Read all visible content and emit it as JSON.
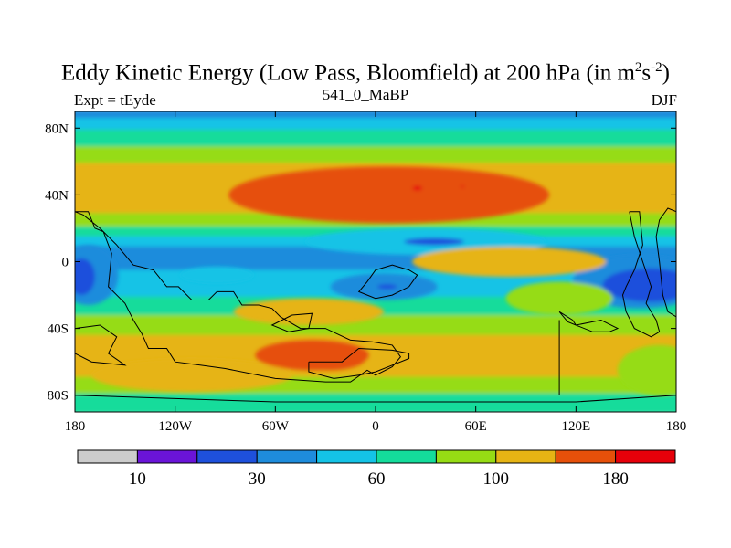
{
  "chart_data": {
    "type": "heatmap",
    "title_main": "Eddy Kinetic Energy (Low Pass, Bloomfield) at 200 hPa (in m",
    "title_unit_exp1": "2",
    "title_unit_s": "s",
    "title_unit_exp2": "-2",
    "title_close": ")",
    "left_string": "Expt = tEyde",
    "center_string": "541_0_MaBP",
    "right_string": "DJF",
    "x_range": [
      -180,
      180
    ],
    "y_range": [
      -90,
      90
    ],
    "x_ticks": [
      {
        "value": -180,
        "label": "180"
      },
      {
        "value": -120,
        "label": "120W"
      },
      {
        "value": -60,
        "label": "60W"
      },
      {
        "value": 0,
        "label": "0"
      },
      {
        "value": 60,
        "label": "60E"
      },
      {
        "value": 120,
        "label": "120E"
      },
      {
        "value": 180,
        "label": "180"
      }
    ],
    "y_ticks": [
      {
        "value": 80,
        "label": "80N"
      },
      {
        "value": 40,
        "label": "40N"
      },
      {
        "value": 0,
        "label": "0"
      },
      {
        "value": -40,
        "label": "40S"
      },
      {
        "value": -80,
        "label": "80S"
      }
    ],
    "colorbar": {
      "colors": [
        "#cccccc",
        "#6a14d8",
        "#1e50dc",
        "#1e8cdc",
        "#14c3e6",
        "#14dc9b",
        "#96dc14",
        "#e6b414",
        "#e6500a",
        "#e6000a"
      ],
      "levels": [
        {
          "index": 1,
          "label": "10"
        },
        {
          "index": 3,
          "label": "30"
        },
        {
          "index": 5,
          "label": "60"
        },
        {
          "index": 7,
          "label": "100"
        },
        {
          "index": 9,
          "label": "180"
        }
      ]
    },
    "bands": [
      {
        "lat": 90,
        "level": 3
      },
      {
        "lat": 85,
        "level": 4
      },
      {
        "lat": 78,
        "level": 5
      },
      {
        "lat": 68,
        "level": 6
      },
      {
        "lat": 58,
        "level": 7
      },
      {
        "lat": 28,
        "level": 6
      },
      {
        "lat": 20,
        "level": 5
      },
      {
        "lat": 14,
        "level": 4
      },
      {
        "lat": 8,
        "level": 3
      },
      {
        "lat": -6,
        "level": 4
      },
      {
        "lat": -22,
        "level": 5
      },
      {
        "lat": -33,
        "level": 6
      },
      {
        "lat": -45,
        "level": 7
      },
      {
        "lat": -70,
        "level": 6
      },
      {
        "lat": -80,
        "level": 5
      },
      {
        "lat": -90,
        "level": 5
      }
    ],
    "blobs": [
      {
        "lon": 8,
        "lat": 40,
        "rlon": 96,
        "rlat": 17,
        "level": 8
      },
      {
        "lon": 6,
        "lat": 41,
        "rlon": 82,
        "rlat": 11,
        "level": 8
      },
      {
        "lon": 25,
        "lat": 44,
        "rlon": 3,
        "rlat": 1.4,
        "level": 9
      },
      {
        "lon": 52,
        "lat": 45,
        "rlon": 1.2,
        "rlat": 0.6,
        "level": 9
      },
      {
        "lon": 30,
        "lat": 12,
        "rlon": 72,
        "rlat": 8,
        "level": 4
      },
      {
        "lon": 35,
        "lat": 12,
        "rlon": 18,
        "rlat": 2.2,
        "level": 2
      },
      {
        "lon": -172,
        "lat": -8,
        "rlon": 18,
        "rlat": 18,
        "level": 3
      },
      {
        "lon": -176,
        "lat": -9,
        "rlon": 8,
        "rlat": 11,
        "level": 2
      },
      {
        "lon": -95,
        "lat": -8,
        "rlon": 22,
        "rlat": 5,
        "level": 4
      },
      {
        "lon": 5,
        "lat": -15,
        "rlon": 32,
        "rlat": 8,
        "level": 3
      },
      {
        "lon": 7,
        "lat": -15,
        "rlon": 6,
        "rlat": 1.5,
        "level": 2
      },
      {
        "lon": 158,
        "lat": -12,
        "rlon": 40,
        "rlat": 16,
        "level": 3
      },
      {
        "lon": 164,
        "lat": -14,
        "rlon": 28,
        "rlat": 10,
        "level": 2
      },
      {
        "lon": 80,
        "lat": 0,
        "rlon": 58,
        "rlat": 9,
        "level": 7
      },
      {
        "lon": 110,
        "lat": -22,
        "rlon": 32,
        "rlat": 10,
        "level": 6
      },
      {
        "lon": -40,
        "lat": -30,
        "rlon": 45,
        "rlat": 8,
        "level": 7
      },
      {
        "lon": -110,
        "lat": -68,
        "rlon": 60,
        "rlat": 10,
        "level": 7
      },
      {
        "lon": -38,
        "lat": -56,
        "rlon": 34,
        "rlat": 9,
        "level": 8
      },
      {
        "lon": -28,
        "lat": -58,
        "rlon": 22,
        "rlat": 7,
        "level": 8
      },
      {
        "lon": 170,
        "lat": -65,
        "rlon": 25,
        "rlat": 15,
        "level": 6
      }
    ],
    "coastlines": [
      [
        [
          -180,
          30
        ],
        [
          -172,
          30
        ],
        [
          -168,
          20
        ],
        [
          -163,
          18
        ],
        [
          -158,
          5
        ],
        [
          -160,
          -15
        ],
        [
          -150,
          -25
        ],
        [
          -145,
          -35
        ],
        [
          -140,
          -43
        ],
        [
          -136,
          -52
        ],
        [
          -125,
          -52
        ],
        [
          -120,
          -60
        ],
        [
          -105,
          -62
        ],
        [
          -90,
          -64
        ],
        [
          -60,
          -70
        ],
        [
          -30,
          -72
        ],
        [
          -15,
          -72
        ],
        [
          -5,
          -65
        ],
        [
          0,
          -68
        ],
        [
          10,
          -63
        ],
        [
          15,
          -57
        ],
        [
          10,
          -50
        ],
        [
          -2,
          -48
        ],
        [
          -15,
          -47
        ],
        [
          -30,
          -40
        ],
        [
          -45,
          -40
        ],
        [
          -57,
          -33
        ],
        [
          -62,
          -28
        ],
        [
          -70,
          -26
        ],
        [
          -80,
          -26
        ],
        [
          -85,
          -18
        ],
        [
          -95,
          -18
        ],
        [
          -100,
          -23
        ],
        [
          -110,
          -23
        ],
        [
          -118,
          -15
        ],
        [
          -125,
          -15
        ],
        [
          -133,
          -5
        ],
        [
          -145,
          -2
        ],
        [
          -155,
          10
        ],
        [
          -165,
          20
        ],
        [
          -175,
          28
        ],
        [
          -180,
          30
        ]
      ],
      [
        [
          -50,
          -32
        ],
        [
          -38,
          -31
        ],
        [
          -40,
          -40
        ],
        [
          -52,
          -42
        ],
        [
          -62,
          -38
        ],
        [
          -50,
          -32
        ]
      ],
      [
        [
          -40,
          -60
        ],
        [
          -20,
          -60
        ],
        [
          -10,
          -52
        ],
        [
          10,
          -53
        ],
        [
          20,
          -55
        ],
        [
          20,
          -58
        ],
        [
          10,
          -62
        ],
        [
          0,
          -66
        ],
        [
          -10,
          -68
        ],
        [
          -25,
          -70
        ],
        [
          -40,
          -66
        ],
        [
          -40,
          -60
        ]
      ],
      [
        [
          -180,
          -80
        ],
        [
          -120,
          -82
        ],
        [
          -60,
          -84
        ],
        [
          0,
          -84
        ],
        [
          60,
          -84
        ],
        [
          120,
          -84
        ],
        [
          180,
          -80
        ]
      ],
      [
        [
          -180,
          -40
        ],
        [
          -165,
          -38
        ],
        [
          -155,
          -45
        ],
        [
          -160,
          -55
        ],
        [
          -150,
          -62
        ],
        [
          -170,
          -60
        ],
        [
          -180,
          -55
        ]
      ],
      [
        [
          -5,
          -12
        ],
        [
          0,
          -5
        ],
        [
          10,
          -2
        ],
        [
          20,
          -5
        ],
        [
          25,
          -8
        ],
        [
          20,
          -15
        ],
        [
          10,
          -20
        ],
        [
          0,
          -22
        ],
        [
          -10,
          -18
        ],
        [
          -5,
          -12
        ]
      ],
      [
        [
          110,
          -30
        ],
        [
          118,
          -35
        ],
        [
          120,
          -38
        ],
        [
          135,
          -35
        ],
        [
          145,
          -40
        ],
        [
          140,
          -42
        ],
        [
          130,
          -42
        ],
        [
          120,
          -38
        ],
        [
          115,
          -36
        ],
        [
          110,
          -30
        ]
      ],
      [
        [
          110,
          -35
        ],
        [
          110,
          -80
        ]
      ],
      [
        [
          152,
          30
        ],
        [
          158,
          30
        ],
        [
          160,
          10
        ],
        [
          155,
          -5
        ],
        [
          150,
          -15
        ],
        [
          148,
          -20
        ],
        [
          150,
          -30
        ],
        [
          155,
          -40
        ],
        [
          165,
          -45
        ],
        [
          170,
          -42
        ],
        [
          168,
          -35
        ],
        [
          162,
          -25
        ],
        [
          165,
          -15
        ],
        [
          160,
          0
        ],
        [
          155,
          15
        ],
        [
          152,
          30
        ]
      ],
      [
        [
          180,
          30
        ],
        [
          175,
          32
        ],
        [
          170,
          25
        ],
        [
          168,
          15
        ],
        [
          170,
          0
        ],
        [
          172,
          -20
        ],
        [
          175,
          -30
        ],
        [
          180,
          -33
        ]
      ]
    ]
  }
}
